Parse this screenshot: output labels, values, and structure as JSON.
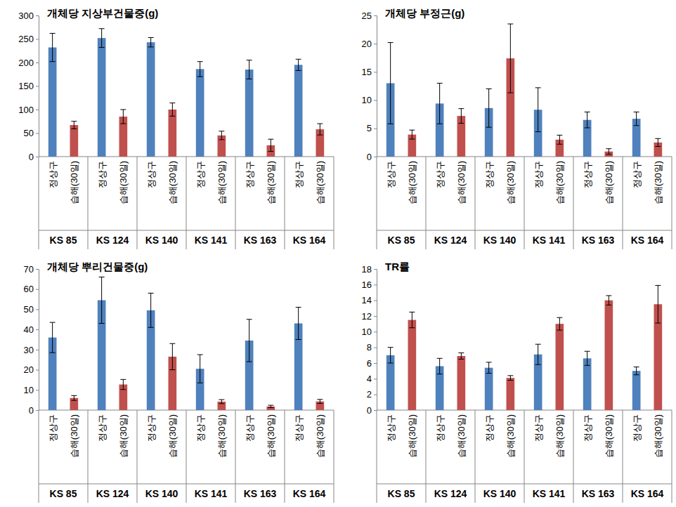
{
  "chart_data": [
    {
      "type": "bar",
      "title": "개체당 지상부건물중(g)",
      "categories": [
        "KS 85",
        "KS 124",
        "KS 140",
        "KS 141",
        "KS 163",
        "KS 164"
      ],
      "series": [
        {
          "name": "정상구",
          "color": "#4F81BD",
          "values": [
            232,
            252,
            243,
            186,
            185,
            195
          ],
          "errors": [
            30,
            20,
            10,
            16,
            20,
            12
          ]
        },
        {
          "name": "습해(30일)",
          "color": "#C0504D",
          "values": [
            67,
            85,
            100,
            45,
            24,
            58
          ],
          "errors": [
            8,
            15,
            14,
            9,
            13,
            12
          ]
        }
      ],
      "ylim": [
        0,
        300
      ],
      "yticks": [
        0,
        50,
        100,
        150,
        200,
        250,
        300
      ],
      "grid": false
    },
    {
      "type": "bar",
      "title": "개체당 부정근(g)",
      "categories": [
        "KS 85",
        "KS 124",
        "KS 140",
        "KS 141",
        "KS 163",
        "KS 164"
      ],
      "series": [
        {
          "name": "정상구",
          "color": "#4F81BD",
          "values": [
            13,
            9.4,
            8.6,
            8.3,
            6.5,
            6.7
          ],
          "errors": [
            7.2,
            3.6,
            3.4,
            3.9,
            1.4,
            1.2
          ]
        },
        {
          "name": "습해(30일)",
          "color": "#C0504D",
          "values": [
            3.9,
            7.2,
            17.4,
            3.0,
            0.9,
            2.5
          ],
          "errors": [
            0.8,
            1.3,
            6.1,
            0.8,
            0.5,
            0.7
          ]
        }
      ],
      "ylim": [
        0,
        25
      ],
      "yticks": [
        0,
        5,
        10,
        15,
        20,
        25
      ],
      "grid": false
    },
    {
      "type": "bar",
      "title": "개체당 뿌리건물중(g)",
      "categories": [
        "KS 85",
        "KS 124",
        "KS 140",
        "KS 141",
        "KS 163",
        "KS 164"
      ],
      "series": [
        {
          "name": "정상구",
          "color": "#4F81BD",
          "values": [
            36,
            54.5,
            49.5,
            20.5,
            34.5,
            43
          ],
          "errors": [
            7.5,
            11.5,
            8.5,
            7,
            10.5,
            8
          ]
        },
        {
          "name": "습해(30일)",
          "color": "#C0504D",
          "values": [
            6,
            12.7,
            26.5,
            4.2,
            1.8,
            4.3
          ],
          "errors": [
            1.2,
            2.5,
            6.5,
            1,
            0.6,
            1
          ]
        }
      ],
      "ylim": [
        0,
        70
      ],
      "yticks": [
        0,
        10,
        20,
        30,
        40,
        50,
        60,
        70
      ],
      "grid": false
    },
    {
      "type": "bar",
      "title": "TR률",
      "categories": [
        "KS 85",
        "KS 124",
        "KS 140",
        "KS 141",
        "KS 163",
        "KS 164"
      ],
      "series": [
        {
          "name": "정상구",
          "color": "#4F81BD",
          "values": [
            7.0,
            5.6,
            5.4,
            7.1,
            6.6,
            5.0
          ],
          "errors": [
            1,
            1,
            0.7,
            1.3,
            0.9,
            0.5
          ]
        },
        {
          "name": "습해(30일)",
          "color": "#C0504D",
          "values": [
            11.5,
            6.9,
            4.1,
            11.0,
            14.0,
            13.5
          ],
          "errors": [
            1,
            0.4,
            0.3,
            0.8,
            0.6,
            2.4
          ]
        }
      ],
      "ylim": [
        0,
        18
      ],
      "yticks": [
        0,
        2,
        4,
        6,
        8,
        10,
        12,
        14,
        16,
        18
      ],
      "grid": false
    }
  ]
}
